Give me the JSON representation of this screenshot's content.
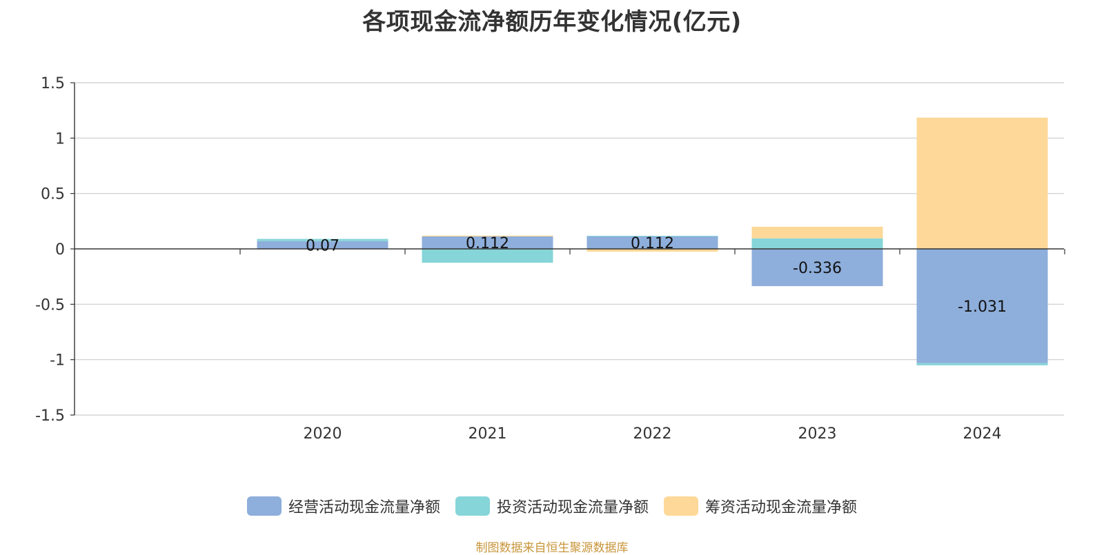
{
  "chart_data": {
    "type": "bar",
    "stacked": true,
    "title": "各项现金流净额历年变化情况(亿元)",
    "categories": [
      "2020",
      "2021",
      "2022",
      "2023",
      "2024"
    ],
    "ylim": [
      -1.5,
      1.5
    ],
    "yticks": [
      "1.5",
      "1",
      "0.5",
      "0",
      "-0.5",
      "-1",
      "-1.5"
    ],
    "ytick_values": [
      1.5,
      1,
      0.5,
      0,
      -0.5,
      -1,
      -1.5
    ],
    "grid": true,
    "legend_position": "bottom",
    "series": [
      {
        "name": "经营活动现金流量净额",
        "color": "#8eaedb",
        "values": [
          0.07,
          0.112,
          0.112,
          -0.336,
          -1.031
        ],
        "labels": [
          "0.07",
          "0.112",
          "0.112",
          "-0.336",
          "-1.031"
        ]
      },
      {
        "name": "投资活动现金流量净额",
        "color": "#86d5d8",
        "values": [
          0.02,
          -0.125,
          0.006,
          0.095,
          -0.02
        ]
      },
      {
        "name": "筹资活动现金流量净额",
        "color": "#fdd898",
        "values": [
          0.0,
          0.008,
          -0.025,
          0.105,
          1.185
        ]
      }
    ]
  },
  "source": "制图数据来自恒生聚源数据库"
}
